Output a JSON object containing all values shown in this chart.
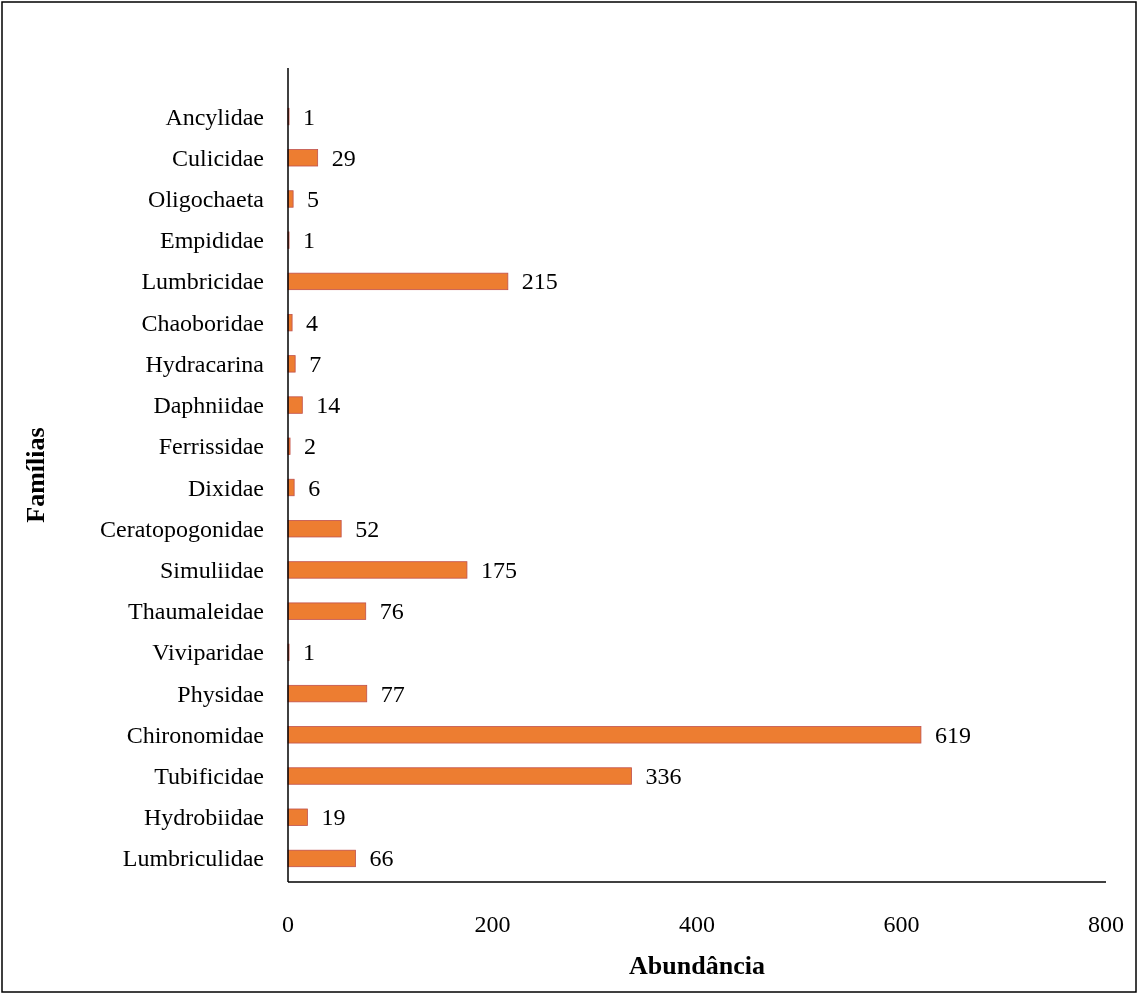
{
  "chart_data": {
    "type": "bar",
    "orientation": "horizontal",
    "xlabel": "Abundância",
    "ylabel": "Famílias",
    "categories": [
      "Ancylidae",
      "Culicidae",
      "Oligochaeta",
      "Empididae",
      "Lumbricidae",
      "Chaoboridae",
      "Hydracarina",
      "Daphniidae",
      "Ferrissidae",
      "Dixidae",
      "Ceratopogonidae",
      "Simuliidae",
      "Thaumaleidae",
      "Viviparidae",
      "Physidae",
      "Chironomidae",
      "Tubificidae",
      "Hydrobiidae",
      "Lumbriculidae"
    ],
    "values": [
      1,
      29,
      5,
      1,
      215,
      4,
      7,
      14,
      2,
      6,
      52,
      175,
      76,
      1,
      77,
      619,
      336,
      19,
      66
    ],
    "color": "#ed7d31",
    "xlim": [
      0,
      800
    ],
    "xticks": [
      0,
      200,
      400,
      600,
      800
    ],
    "data_labels": true
  }
}
